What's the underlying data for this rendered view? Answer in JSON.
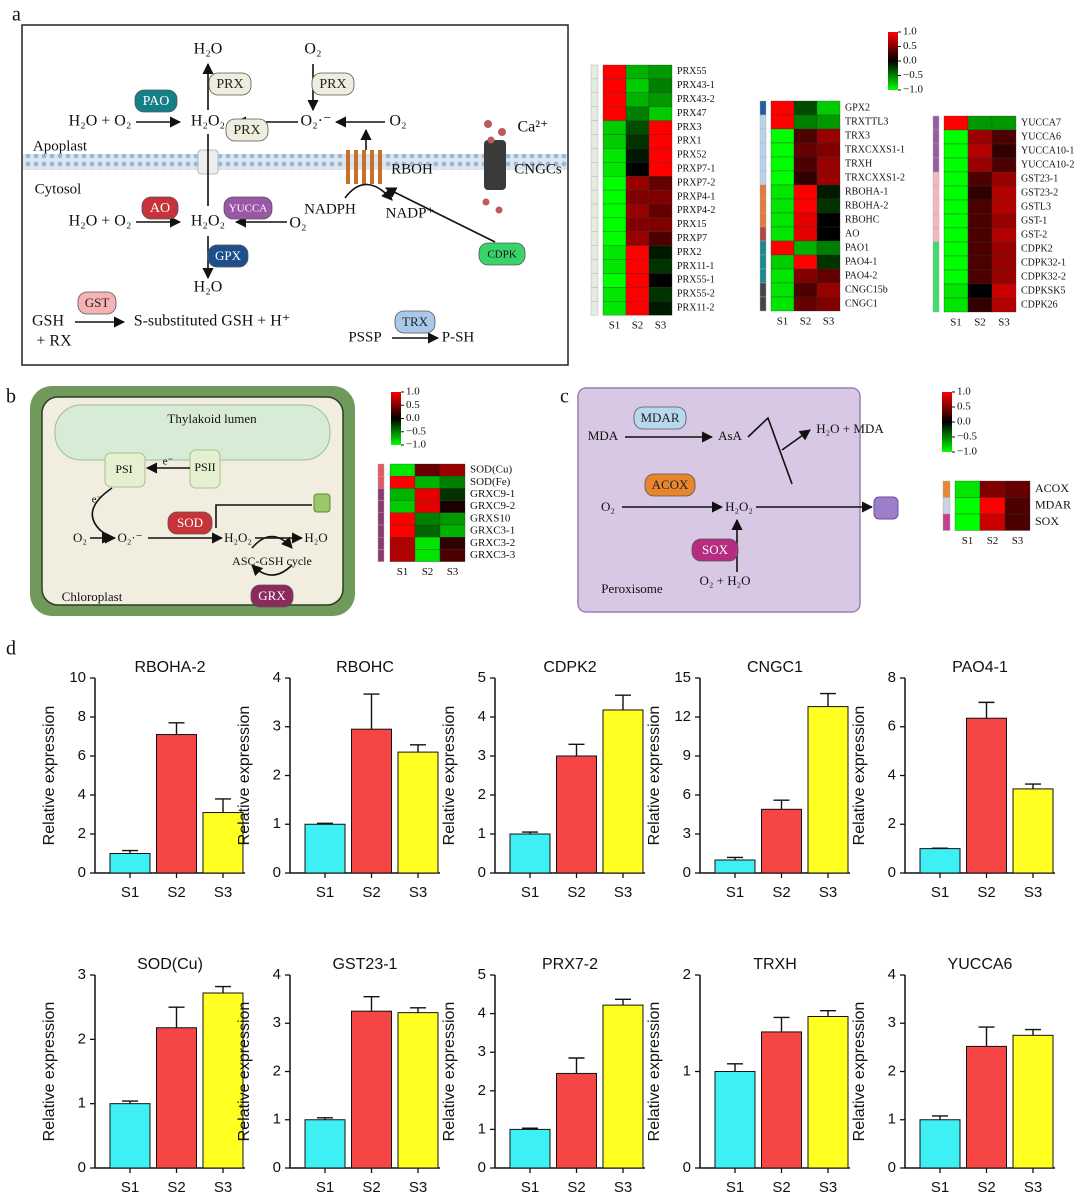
{
  "panel_letters": {
    "a": "a",
    "b": "b",
    "c": "c",
    "d": "d"
  },
  "panel_a": {
    "h2o_top": "H₂O",
    "prx_1": "PRX",
    "o2_top": "O₂",
    "prx_2": "PRX",
    "h2o_o2_1": "H₂O + O₂",
    "pao": "PAO",
    "h2o2_1": "H₂O₂",
    "prx_3": "PRX",
    "superoxide": "O₂·⁻",
    "o2_right": "O₂",
    "ca": "Ca²⁺",
    "apoplast": "Apoplast",
    "rboh": "RBOH",
    "cngcs": "CNGCs",
    "cytosol": "Cytosol",
    "ao": "AO",
    "yucca": "YUCCA",
    "nadph": "NADPH",
    "nadp": "NADP⁺",
    "h2o_o2_2": "H₂O + O₂",
    "h2o2_2": "H₂O₂",
    "o2_low": "O₂",
    "cdpk": "CDPK",
    "gpx": "GPX",
    "h2o_bottom": "H₂O",
    "gst": "GST",
    "gsh": "GSH",
    "rx": "+ RX",
    "product": "S-substituted GSH + H⁺",
    "trx": "TRX",
    "pssp": "PSSP",
    "psh": "P-SH"
  },
  "panel_b": {
    "lumen": "Thylakoid lumen",
    "e1": "e⁻",
    "psi": "PSI",
    "psii": "PSII",
    "e2": "e⁻",
    "sod": "SOD",
    "o2": "O₂",
    "superoxide": "O₂·⁻",
    "h2o2": "H₂O₂",
    "h2o": "H₂O",
    "cycle": "ASC-GSH cycle",
    "grx": "GRX",
    "chloroplast": "Chloroplast"
  },
  "panel_c": {
    "mdar": "MDAR",
    "mda": "MDA",
    "asa": "AsA",
    "product": "H₂O + MDA",
    "acox": "ACOX",
    "o2": "O₂",
    "h2o2": "H₂O₂",
    "sox": "SOX",
    "substrate": "O₂ + H₂O",
    "peroxisome": "Peroxisome"
  },
  "chart_data": [
    {
      "type": "heatmap",
      "columns": [
        "S1",
        "S2",
        "S3"
      ],
      "clim": [
        -1,
        1
      ],
      "colormap": [
        "#00ff00",
        "#000000",
        "#ff0000"
      ],
      "rows": [
        "PRX55",
        "PRX43-1",
        "PRX43-2",
        "PRX47",
        "PRX3",
        "PRX1",
        "PRX52",
        "PRXP7-1",
        "PRXP7-2",
        "PRXP4-1",
        "PRXP4-2",
        "PRX15",
        "PRXP7",
        "PRX2",
        "PRX11-1",
        "PRX55-1",
        "PRX55-2",
        "PRX11-2"
      ],
      "row_colors": [
        "#e4ecdf",
        "#e4ecdf",
        "#e4ecdf",
        "#e4ecdf",
        "#e4ecdf",
        "#e4ecdf",
        "#e4ecdf",
        "#e4ecdf",
        "#e4ecdf",
        "#e4ecdf",
        "#e4ecdf",
        "#e4ecdf",
        "#e4ecdf",
        "#e4ecdf",
        "#e4ecdf",
        "#e4ecdf",
        "#e4ecdf",
        "#e4ecdf"
      ],
      "values": [
        [
          1,
          -0.7,
          -0.6
        ],
        [
          1,
          -0.8,
          -0.5
        ],
        [
          1,
          -0.7,
          -0.6
        ],
        [
          1,
          -0.5,
          -0.8
        ],
        [
          -0.8,
          -0.3,
          1
        ],
        [
          -0.8,
          -0.2,
          1
        ],
        [
          -0.9,
          -0.1,
          1
        ],
        [
          -0.9,
          0,
          1
        ],
        [
          -1,
          0.6,
          0.4
        ],
        [
          -1,
          0.5,
          0.5
        ],
        [
          -1,
          0.6,
          0.4
        ],
        [
          -1,
          0.5,
          0.5
        ],
        [
          -1,
          0.6,
          0.3
        ],
        [
          -0.9,
          1,
          -0.1
        ],
        [
          -0.9,
          1,
          -0.2
        ],
        [
          -1,
          1,
          0
        ],
        [
          -0.9,
          1,
          -0.2
        ],
        [
          -0.9,
          1,
          -0.1
        ]
      ]
    },
    {
      "type": "heatmap",
      "columns": [
        "S1",
        "S2",
        "S3"
      ],
      "clim": [
        -1,
        1
      ],
      "colormap": [
        "#00ff00",
        "#000000",
        "#ff0000"
      ],
      "cticks": [
        {
          "value": 1,
          "label": "1.0"
        },
        {
          "value": 0.5,
          "label": "0.5"
        },
        {
          "value": 0,
          "label": "0.0"
        },
        {
          "value": -0.5,
          "label": "−0.5"
        },
        {
          "value": -1,
          "label": "−1.0"
        }
      ],
      "rows": [
        "GPX2",
        "TRXTTL3",
        "TRX3",
        "TRXCXXS1-1",
        "TRXH",
        "TRXCXXS1-2",
        "RBOHA-1",
        "RBOHA-2",
        "RBOHC",
        "AO",
        "PAO1",
        "PAO4-1",
        "PAO4-2",
        "CNGC15b",
        "CNGC1"
      ],
      "row_colors": [
        "#1f5fa0",
        "#b9d4ea",
        "#b9d4ea",
        "#b9d4ea",
        "#b9d4ea",
        "#b9d4ea",
        "#e07b39",
        "#e07b39",
        "#e07b39",
        "#b04a4a",
        "#1b8a8f",
        "#1b8a8f",
        "#1b8a8f",
        "#454545",
        "#454545"
      ],
      "values": [
        [
          1,
          -0.3,
          -0.8
        ],
        [
          1,
          -0.5,
          -0.6
        ],
        [
          -1,
          0.3,
          0.6
        ],
        [
          -1,
          0.4,
          0.5
        ],
        [
          -1,
          0.3,
          0.6
        ],
        [
          -1,
          0.2,
          0.6
        ],
        [
          -0.9,
          1,
          -0.1
        ],
        [
          -0.9,
          1,
          -0.2
        ],
        [
          -0.9,
          0.9,
          0
        ],
        [
          -0.9,
          0.9,
          0
        ],
        [
          1,
          -0.7,
          -0.5
        ],
        [
          -0.8,
          1,
          -0.2
        ],
        [
          -0.9,
          0.5,
          0.4
        ],
        [
          -0.9,
          0.3,
          0.6
        ],
        [
          -0.9,
          0.4,
          0.5
        ]
      ]
    },
    {
      "type": "heatmap",
      "columns": [
        "S1",
        "S2",
        "S3"
      ],
      "clim": [
        -1,
        1
      ],
      "colormap": [
        "#00ff00",
        "#000000",
        "#ff0000"
      ],
      "rows": [
        "YUCCA7",
        "YUCCA6",
        "YUCCA10-1",
        "YUCCA10-2",
        "GST23-1",
        "GST23-2",
        "GSTL3",
        "GST-1",
        "GST-2",
        "CDPK2",
        "CDPK32-1",
        "CDPK32-2",
        "CDPKSK5",
        "CDPK26"
      ],
      "row_colors": [
        "#9a5aa5",
        "#9a5aa5",
        "#9a5aa5",
        "#9a5aa5",
        "#f4b7c0",
        "#f4b7c0",
        "#f4b7c0",
        "#f4b7c0",
        "#f4b7c0",
        "#3ddc6a",
        "#3ddc6a",
        "#3ddc6a",
        "#3ddc6a",
        "#3ddc6a"
      ],
      "values": [
        [
          1,
          -0.6,
          -0.6
        ],
        [
          -1,
          0.6,
          0.3
        ],
        [
          -1,
          0.7,
          0.2
        ],
        [
          -1,
          0.6,
          0.3
        ],
        [
          -1,
          0.3,
          0.6
        ],
        [
          -1,
          0.2,
          0.7
        ],
        [
          -1,
          0.3,
          0.7
        ],
        [
          -1,
          0.3,
          0.6
        ],
        [
          -1,
          0.3,
          0.7
        ],
        [
          -1,
          0.3,
          0.6
        ],
        [
          -1,
          0.3,
          0.6
        ],
        [
          -1,
          0.3,
          0.6
        ],
        [
          -0.9,
          0,
          0.8
        ],
        [
          -0.9,
          0.2,
          0.7
        ]
      ]
    },
    {
      "type": "heatmap",
      "columns": [
        "S1",
        "S2",
        "S3"
      ],
      "clim": [
        -1,
        1
      ],
      "colormap": [
        "#00ff00",
        "#000000",
        "#ff0000"
      ],
      "cticks": [
        {
          "value": 1,
          "label": "1.0"
        },
        {
          "value": 0.5,
          "label": "0.5"
        },
        {
          "value": 0,
          "label": "0.0"
        },
        {
          "value": -0.5,
          "label": "−0.5"
        },
        {
          "value": -1,
          "label": "−1.0"
        }
      ],
      "rows": [
        "SOD(Cu)",
        "SOD(Fe)",
        "GRXC9-1",
        "GRXC9-2",
        "GRXS10",
        "GRXC3-1",
        "GRXC3-2",
        "GRXC3-3"
      ],
      "row_colors": [
        "#e15866",
        "#e15866",
        "#8b3a70",
        "#8b3a70",
        "#8b3a70",
        "#8b3a70",
        "#8b3a70",
        "#8b3a70"
      ],
      "values": [
        [
          -0.9,
          0.4,
          0.6
        ],
        [
          1,
          -0.7,
          -0.5
        ],
        [
          -0.7,
          0.9,
          -0.2
        ],
        [
          -0.8,
          0.9,
          0.1
        ],
        [
          1,
          -0.5,
          -0.6
        ],
        [
          1,
          -0.4,
          -0.7
        ],
        [
          0.7,
          -0.9,
          0.2
        ],
        [
          0.7,
          -0.9,
          0.3
        ]
      ]
    },
    {
      "type": "heatmap",
      "columns": [
        "S1",
        "S2",
        "S3"
      ],
      "clim": [
        -1,
        1
      ],
      "colormap": [
        "#00ff00",
        "#000000",
        "#ff0000"
      ],
      "cticks": [
        {
          "value": 1,
          "label": "1.0"
        },
        {
          "value": 0.5,
          "label": "0.5"
        },
        {
          "value": 0,
          "label": "0.0"
        },
        {
          "value": -0.5,
          "label": "−0.5"
        },
        {
          "value": -1,
          "label": "−1.0"
        }
      ],
      "rows": [
        "ACOX",
        "MDAR",
        "SOX"
      ],
      "row_colors": [
        "#e6873b",
        "#c9d3e0",
        "#c2418e"
      ],
      "values": [
        [
          -0.9,
          0.5,
          0.4
        ],
        [
          -1,
          1,
          0.3
        ],
        [
          -1,
          0.8,
          0.3
        ]
      ]
    },
    {
      "type": "bar",
      "title": "RBOHA-2",
      "y_label": "Relative expression",
      "categories": [
        "S1",
        "S2",
        "S3"
      ],
      "values": [
        1,
        7.1,
        3.1
      ],
      "errors": [
        0.15,
        0.6,
        0.7
      ],
      "colors": [
        "#3ef0f4",
        "#f54545",
        "#ffff22"
      ],
      "ylim": [
        0,
        10
      ],
      "yticks": [
        0,
        2,
        4,
        6,
        8,
        10
      ]
    },
    {
      "type": "bar",
      "title": "RBOHC",
      "y_label": "Relative expression",
      "categories": [
        "S1",
        "S2",
        "S3"
      ],
      "values": [
        1,
        2.95,
        2.48
      ],
      "errors": [
        0.02,
        0.72,
        0.15
      ],
      "colors": [
        "#3ef0f4",
        "#f54545",
        "#ffff22"
      ],
      "ylim": [
        0,
        4
      ],
      "yticks": [
        0,
        1,
        2,
        3,
        4
      ]
    },
    {
      "type": "bar",
      "title": "CDPK2",
      "y_label": "Relative expression",
      "categories": [
        "S1",
        "S2",
        "S3"
      ],
      "values": [
        1,
        3,
        4.18
      ],
      "errors": [
        0.05,
        0.3,
        0.38
      ],
      "colors": [
        "#3ef0f4",
        "#f54545",
        "#ffff22"
      ],
      "ylim": [
        0,
        5
      ],
      "yticks": [
        0,
        1,
        2,
        3,
        4,
        5
      ]
    },
    {
      "type": "bar",
      "title": "CNGC1",
      "y_label": "Relative expression",
      "categories": [
        "S1",
        "S2",
        "S3"
      ],
      "values": [
        1,
        4.9,
        12.8
      ],
      "errors": [
        0.2,
        0.7,
        1
      ],
      "colors": [
        "#3ef0f4",
        "#f54545",
        "#ffff22"
      ],
      "ylim": [
        0,
        15
      ],
      "yticks": [
        0,
        3,
        6,
        9,
        12,
        15
      ]
    },
    {
      "type": "bar",
      "title": "PAO4-1",
      "y_label": "Relative expression",
      "categories": [
        "S1",
        "S2",
        "S3"
      ],
      "values": [
        1,
        6.35,
        3.45
      ],
      "errors": [
        0.02,
        0.65,
        0.2
      ],
      "colors": [
        "#3ef0f4",
        "#f54545",
        "#ffff22"
      ],
      "ylim": [
        0,
        8
      ],
      "yticks": [
        0,
        2,
        4,
        6,
        8
      ]
    },
    {
      "type": "bar",
      "title": "SOD(Cu)",
      "y_label": "Relative expression",
      "categories": [
        "S1",
        "S2",
        "S3"
      ],
      "values": [
        1,
        2.18,
        2.72
      ],
      "errors": [
        0.04,
        0.32,
        0.1
      ],
      "colors": [
        "#3ef0f4",
        "#f54545",
        "#ffff22"
      ],
      "ylim": [
        0,
        3
      ],
      "yticks": [
        0,
        1,
        2,
        3
      ]
    },
    {
      "type": "bar",
      "title": "GST23-1",
      "y_label": "Relative expression",
      "categories": [
        "S1",
        "S2",
        "S3"
      ],
      "values": [
        1,
        3.25,
        3.22
      ],
      "errors": [
        0.04,
        0.3,
        0.1
      ],
      "colors": [
        "#3ef0f4",
        "#f54545",
        "#ffff22"
      ],
      "ylim": [
        0,
        4
      ],
      "yticks": [
        0,
        1,
        2,
        3,
        4
      ]
    },
    {
      "type": "bar",
      "title": "PRX7-2",
      "y_label": "Relative expression",
      "categories": [
        "S1",
        "S2",
        "S3"
      ],
      "values": [
        1,
        2.45,
        4.22
      ],
      "errors": [
        0.03,
        0.4,
        0.15
      ],
      "colors": [
        "#3ef0f4",
        "#f54545",
        "#ffff22"
      ],
      "ylim": [
        0,
        5
      ],
      "yticks": [
        0,
        1,
        2,
        3,
        4,
        5
      ]
    },
    {
      "type": "bar",
      "title": "TRXH",
      "y_label": "Relative expression",
      "categories": [
        "S1",
        "S2",
        "S3"
      ],
      "values": [
        1,
        1.41,
        1.57
      ],
      "errors": [
        0.08,
        0.15,
        0.06
      ],
      "colors": [
        "#3ef0f4",
        "#f54545",
        "#ffff22"
      ],
      "ylim": [
        0,
        2
      ],
      "yticks": [
        0,
        1,
        2
      ]
    },
    {
      "type": "bar",
      "title": "YUCCA6",
      "y_label": "Relative expression",
      "categories": [
        "S1",
        "S2",
        "S3"
      ],
      "values": [
        1,
        2.52,
        2.75
      ],
      "errors": [
        0.08,
        0.4,
        0.12
      ],
      "colors": [
        "#3ef0f4",
        "#f54545",
        "#ffff22"
      ],
      "ylim": [
        0,
        4
      ],
      "yticks": [
        0,
        1,
        2,
        3,
        4
      ]
    }
  ]
}
